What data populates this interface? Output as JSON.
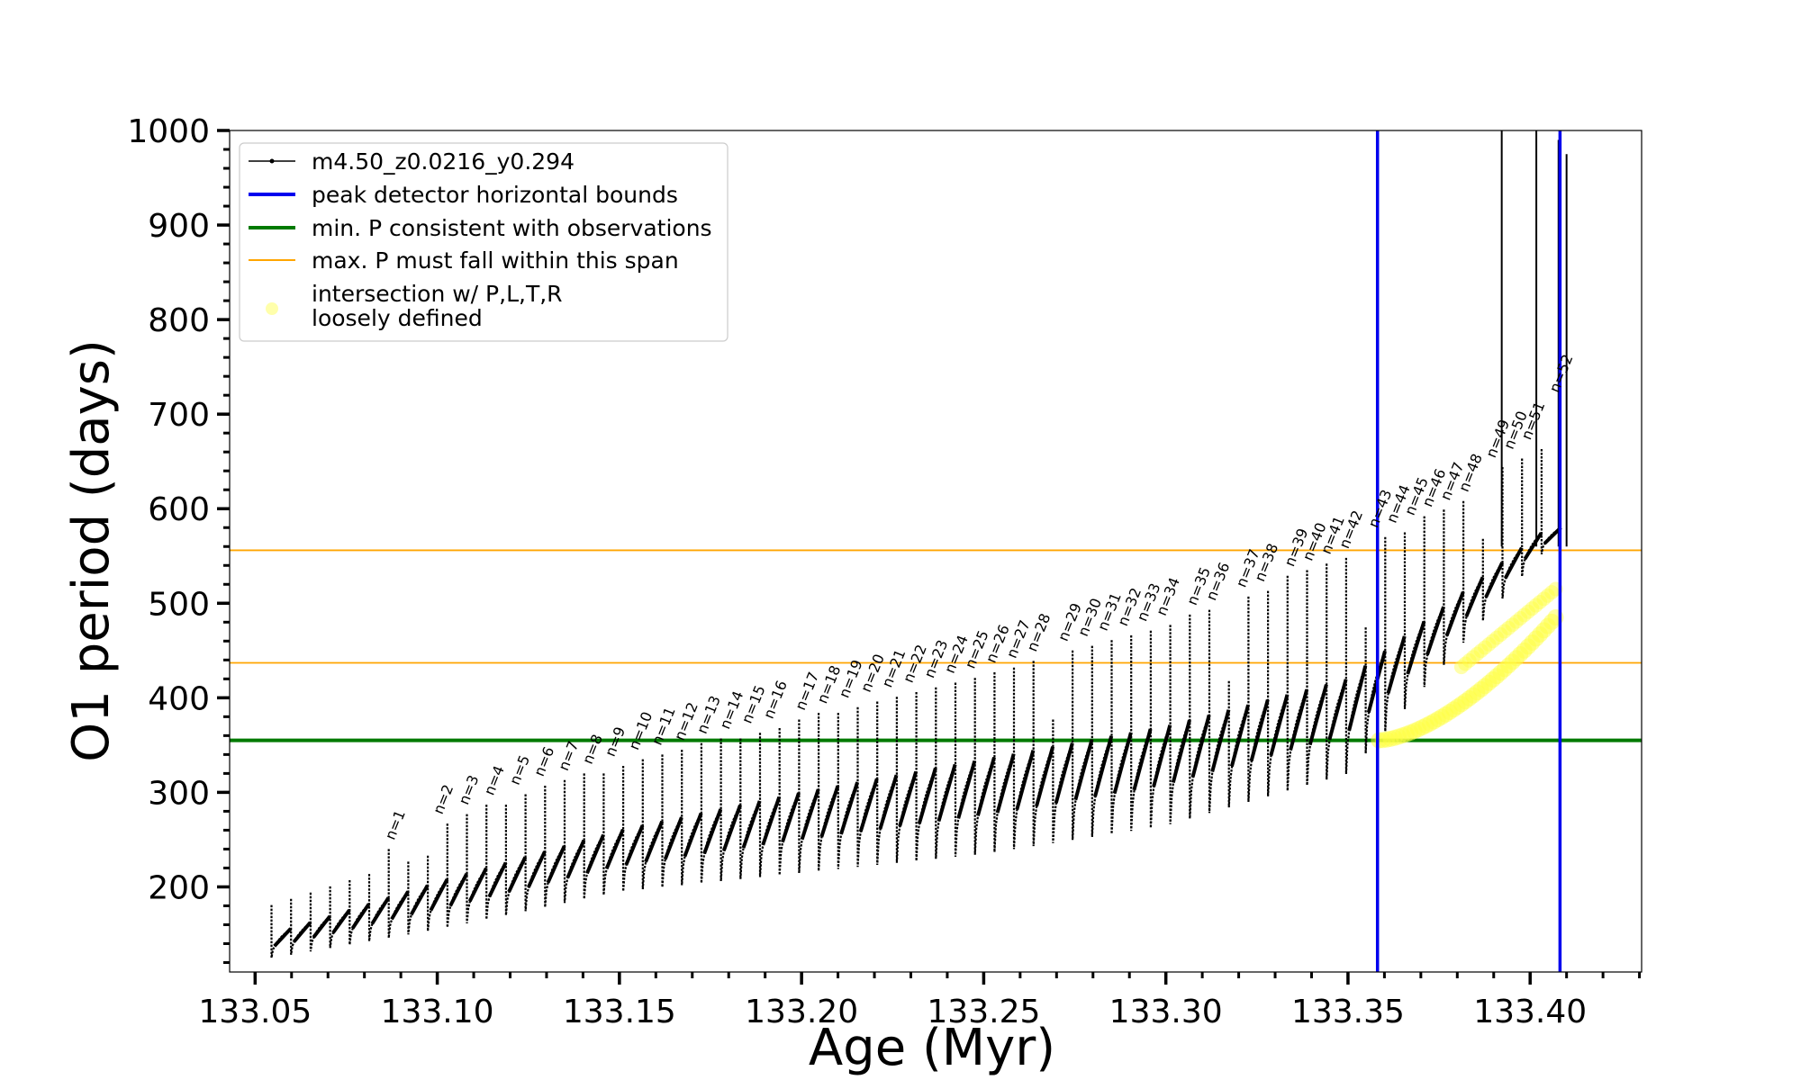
{
  "chart_data": {
    "type": "line",
    "xlabel": "Age (Myr)",
    "ylabel": "O1 period (days)",
    "xlim": [
      133.043,
      133.4306
    ],
    "ylim": [
      110,
      1000
    ],
    "x_ticks": [
      "133.05",
      "133.10",
      "133.15",
      "133.20",
      "133.25",
      "133.30",
      "133.35",
      "133.40"
    ],
    "x_tick_values": [
      133.05,
      133.1,
      133.15,
      133.2,
      133.25,
      133.3,
      133.35,
      133.4
    ],
    "y_ticks": [
      "200",
      "300",
      "400",
      "500",
      "600",
      "700",
      "800",
      "900",
      "1000"
    ],
    "y_tick_values": [
      200,
      300,
      400,
      500,
      600,
      700,
      800,
      900,
      1000
    ],
    "legend": {
      "position": "upper-left",
      "entries": [
        {
          "label": "m4.50_z0.0216_y0.294",
          "style": "black-line-markers"
        },
        {
          "label": "peak detector horizontal bounds",
          "style": "blue-line"
        },
        {
          "label": "min. P consistent with observations",
          "style": "green-line"
        },
        {
          "label": "max. P must fall within this span",
          "style": "orange-line"
        },
        {
          "label": "intersection w/ P,L,T,R",
          "label2": "loosely defined",
          "style": "yellow-marker"
        }
      ]
    },
    "series": [
      {
        "name": "m4.50_z0.0216_y0.294",
        "color": "#000000",
        "pulse_start_age": 133.0545,
        "pulse_end_age": 133.4085,
        "pulse_count": 66,
        "envelope_min": [
          [
            133.055,
            125
          ],
          [
            133.1,
            155
          ],
          [
            133.15,
            195
          ],
          [
            133.2,
            215
          ],
          [
            133.25,
            235
          ],
          [
            133.3,
            265
          ],
          [
            133.35,
            320
          ],
          [
            133.405,
            560
          ]
        ],
        "envelope_max": [
          [
            133.055,
            150
          ],
          [
            133.1,
            205
          ],
          [
            133.15,
            260
          ],
          [
            133.2,
            300
          ],
          [
            133.25,
            335
          ],
          [
            133.3,
            370
          ],
          [
            133.35,
            420
          ],
          [
            133.405,
            580
          ]
        ]
      }
    ],
    "peak_labels": [
      {
        "text": "n=1",
        "x": 133.0886,
        "y": 245
      },
      {
        "text": "n=2",
        "x": 133.1018,
        "y": 272
      },
      {
        "text": "n=3",
        "x": 133.1088,
        "y": 282
      },
      {
        "text": "n=4",
        "x": 133.1158,
        "y": 292
      },
      {
        "text": "n=5",
        "x": 133.1228,
        "y": 303
      },
      {
        "text": "n=6",
        "x": 133.1295,
        "y": 312
      },
      {
        "text": "n=7",
        "x": 133.1362,
        "y": 318
      },
      {
        "text": "n=8",
        "x": 133.1428,
        "y": 325
      },
      {
        "text": "n=9",
        "x": 133.149,
        "y": 333
      },
      {
        "text": "n=10",
        "x": 133.1555,
        "y": 340
      },
      {
        "text": "n=11",
        "x": 133.1618,
        "y": 345
      },
      {
        "text": "n=12",
        "x": 133.168,
        "y": 350
      },
      {
        "text": "n=13",
        "x": 133.1742,
        "y": 357
      },
      {
        "text": "n=14",
        "x": 133.1805,
        "y": 362
      },
      {
        "text": "n=15",
        "x": 133.1865,
        "y": 368
      },
      {
        "text": "n=16",
        "x": 133.1925,
        "y": 373
      },
      {
        "text": "n=17",
        "x": 133.2012,
        "y": 382
      },
      {
        "text": "n=18",
        "x": 133.2072,
        "y": 389
      },
      {
        "text": "n=19",
        "x": 133.2132,
        "y": 395
      },
      {
        "text": "n=20",
        "x": 133.2192,
        "y": 401
      },
      {
        "text": "n=21",
        "x": 133.225,
        "y": 406
      },
      {
        "text": "n=22",
        "x": 133.2308,
        "y": 411
      },
      {
        "text": "n=23",
        "x": 133.2366,
        "y": 416
      },
      {
        "text": "n=24",
        "x": 133.2422,
        "y": 421
      },
      {
        "text": "n=25",
        "x": 133.2478,
        "y": 426
      },
      {
        "text": "n=26",
        "x": 133.2535,
        "y": 432
      },
      {
        "text": "n=27",
        "x": 133.2592,
        "y": 437
      },
      {
        "text": "n=28",
        "x": 133.2648,
        "y": 444
      },
      {
        "text": "n=29",
        "x": 133.2733,
        "y": 455
      },
      {
        "text": "n=30",
        "x": 133.2788,
        "y": 460
      },
      {
        "text": "n=31",
        "x": 133.2842,
        "y": 466
      },
      {
        "text": "n=32",
        "x": 133.2897,
        "y": 471
      },
      {
        "text": "n=33",
        "x": 133.295,
        "y": 476
      },
      {
        "text": "n=34",
        "x": 133.3003,
        "y": 482
      },
      {
        "text": "n=35",
        "x": 133.3087,
        "y": 493
      },
      {
        "text": "n=36",
        "x": 133.314,
        "y": 498
      },
      {
        "text": "n=37",
        "x": 133.3222,
        "y": 512
      },
      {
        "text": "n=38",
        "x": 133.3273,
        "y": 518
      },
      {
        "text": "n=39",
        "x": 133.3355,
        "y": 534
      },
      {
        "text": "n=40",
        "x": 133.3405,
        "y": 540
      },
      {
        "text": "n=41",
        "x": 133.3455,
        "y": 547
      },
      {
        "text": "n=42",
        "x": 133.3505,
        "y": 553
      },
      {
        "text": "n=43",
        "x": 133.3585,
        "y": 575
      },
      {
        "text": "n=44",
        "x": 133.3635,
        "y": 580
      },
      {
        "text": "n=45",
        "x": 133.3685,
        "y": 588
      },
      {
        "text": "n=46",
        "x": 133.3733,
        "y": 597
      },
      {
        "text": "n=47",
        "x": 133.3783,
        "y": 604
      },
      {
        "text": "n=48",
        "x": 133.3833,
        "y": 613
      },
      {
        "text": "n=49",
        "x": 133.3908,
        "y": 649
      },
      {
        "text": "n=50",
        "x": 133.3957,
        "y": 658
      },
      {
        "text": "n=51",
        "x": 133.4005,
        "y": 668
      },
      {
        "text": "n=52",
        "x": 133.4082,
        "y": 718
      }
    ],
    "hlines": [
      {
        "name": "min. P consistent with observations",
        "y": 355,
        "color": "#007a00"
      },
      {
        "name": "max. P must fall within this span (lower)",
        "y": 437,
        "color": "#ffa500"
      },
      {
        "name": "max. P must fall within this span (upper)",
        "y": 556,
        "color": "#ffa500"
      }
    ],
    "vlines": [
      {
        "name": "peak detector horizontal bounds (left)",
        "x": 133.3581,
        "color": "#0000ee"
      },
      {
        "name": "peak detector horizontal bounds (right)",
        "x": 133.4082,
        "color": "#0000ee"
      }
    ],
    "intersection_region": {
      "x_range": [
        133.3585,
        133.407
      ],
      "lower_y_range": [
        355,
        485
      ],
      "upper_y_range": [
        430,
        515
      ],
      "color": "#ffff44"
    },
    "grid": false
  }
}
